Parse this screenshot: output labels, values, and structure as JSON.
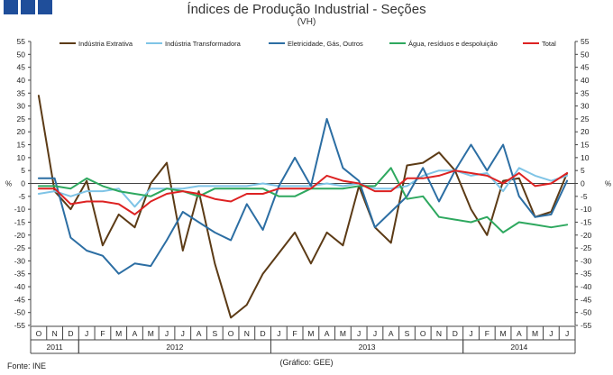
{
  "header": {
    "title": "Índices de Produção Industrial - Seções",
    "subtitle": "(VH)"
  },
  "footer": {
    "source": "Fonte: INE",
    "credit": "(Gráfico: GEE)"
  },
  "chart_data": {
    "type": "line",
    "title": "Índices de Produção Industrial - Seções",
    "subtitle": "(VH)",
    "ylabel_left": "%",
    "ylabel_right": "%",
    "ylim": [
      -55,
      55
    ],
    "ytick_step": 5,
    "grid": false,
    "legend_position": "top",
    "x": [
      "O",
      "N",
      "D",
      "J",
      "F",
      "M",
      "A",
      "M",
      "J",
      "J",
      "A",
      "S",
      "O",
      "N",
      "D",
      "J",
      "F",
      "M",
      "A",
      "M",
      "J",
      "J",
      "A",
      "S",
      "O",
      "N",
      "D",
      "J",
      "F",
      "M",
      "A",
      "M",
      "J",
      "J"
    ],
    "year_groups": [
      {
        "label": "2011",
        "start": 0,
        "count": 3
      },
      {
        "label": "2012",
        "start": 3,
        "count": 12
      },
      {
        "label": "2013",
        "start": 15,
        "count": 12
      },
      {
        "label": "2014",
        "start": 27,
        "count": 7
      }
    ],
    "series": [
      {
        "name": "Indústria Extrativa",
        "color": "#5c3b16",
        "values": [
          34,
          -3,
          -10,
          1,
          -24,
          -12,
          -17,
          0,
          8,
          -26,
          -3,
          -31,
          -52,
          -47,
          -35,
          -27,
          -19,
          -31,
          -19,
          -24,
          -1,
          -17,
          -23,
          7,
          8,
          12,
          5,
          -10,
          -20,
          1,
          2,
          -13,
          -11,
          4
        ]
      },
      {
        "name": "Indústria Transformadora",
        "color": "#7fc4e6",
        "values": [
          -4,
          -3,
          -5,
          -3,
          -3,
          -2,
          -9,
          -2,
          -2,
          -2,
          -1,
          -1,
          -1,
          -1,
          0,
          -1,
          -1,
          -1,
          0,
          -1,
          0,
          -2,
          -2,
          -1,
          3,
          5,
          5,
          3,
          4,
          -3,
          6,
          3,
          1,
          3
        ]
      },
      {
        "name": "Eletricidade, Gás, Outros",
        "color": "#2c6ea3",
        "values": [
          2,
          2,
          -21,
          -26,
          -28,
          -35,
          -31,
          -32,
          -22,
          -11,
          -15,
          -19,
          -22,
          -8,
          -18,
          -1,
          10,
          -1,
          25,
          6,
          1,
          -17,
          -11,
          -5,
          6,
          -7,
          5,
          15,
          5,
          15,
          -5,
          -13,
          -12,
          1
        ]
      },
      {
        "name": "Água, resíduos e despoluição",
        "color": "#2ea85f",
        "values": [
          -1,
          -1,
          -2,
          2,
          -1,
          -3,
          -4,
          -5,
          -2,
          -3,
          -5,
          -2,
          -2,
          -2,
          -2,
          -5,
          -5,
          -2,
          -2,
          -2,
          -1,
          -1,
          6,
          -6,
          -5,
          -13,
          -14,
          -15,
          -13,
          -19,
          -15,
          -16,
          -17,
          -16
        ]
      },
      {
        "name": "Total",
        "color": "#dd2222",
        "values": [
          -2,
          -2,
          -8,
          -7,
          -7,
          -8,
          -12,
          -7,
          -4,
          -3,
          -4,
          -6,
          -7,
          -4,
          -4,
          -2,
          -2,
          -2,
          3,
          1,
          0,
          -3,
          -3,
          2,
          2,
          3,
          5,
          4,
          3,
          0,
          4,
          -1,
          0,
          4
        ]
      }
    ]
  }
}
